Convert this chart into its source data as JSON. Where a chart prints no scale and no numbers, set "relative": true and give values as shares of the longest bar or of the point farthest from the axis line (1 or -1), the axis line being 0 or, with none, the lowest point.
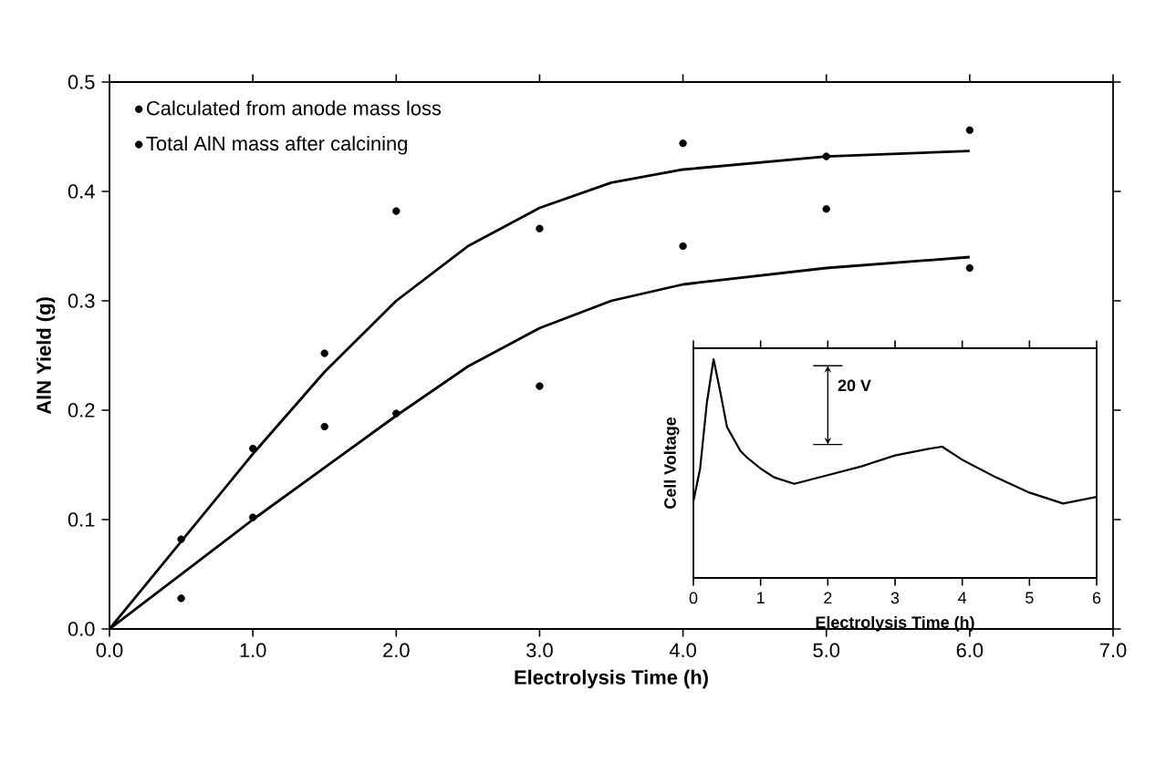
{
  "chart_data": [
    {
      "type": "scatter",
      "xlabel": "Electrolysis Time (h)",
      "ylabel": "AlN Yield (g)",
      "xlim": [
        0,
        7
      ],
      "ylim": [
        0,
        0.5
      ],
      "xticks": [
        {
          "value": 0,
          "label": "0.0"
        },
        {
          "value": 1,
          "label": "1.0"
        },
        {
          "value": 2,
          "label": "2.0"
        },
        {
          "value": 3,
          "label": "3.0"
        },
        {
          "value": 4,
          "label": "4.0"
        },
        {
          "value": 5,
          "label": "5.0"
        },
        {
          "value": 6,
          "label": "6.0"
        },
        {
          "value": 7,
          "label": "7.0"
        }
      ],
      "yticks": [
        {
          "value": 0,
          "label": "0.0"
        },
        0.1,
        0.2,
        0.3,
        0.4,
        0.5
      ],
      "legend": "top left",
      "series": [
        {
          "name": "Calculated from anode mass loss",
          "color": "#000000",
          "marker": "circle",
          "x": [
            0.5,
            1,
            1.5,
            2,
            3,
            4,
            5,
            6
          ],
          "values": [
            0.082,
            0.165,
            0.252,
            0.382,
            0.366,
            0.444,
            0.432,
            0.456
          ]
        },
        {
          "name": "Total AlN mass after calcining",
          "color": "#000000",
          "marker": "circle",
          "x": [
            0.5,
            1,
            1.5,
            2,
            3,
            4,
            5,
            6
          ],
          "values": [
            0.028,
            0.102,
            0.185,
            0.197,
            0.222,
            0.35,
            0.384,
            0.33
          ]
        },
        {
          "type": "line",
          "color": "#000000",
          "x": [
            0,
            0.5,
            1,
            1.5,
            2,
            2.5,
            3,
            3.5,
            4,
            5,
            6
          ],
          "values": [
            0,
            0.08,
            0.16,
            0.235,
            0.3,
            0.35,
            0.385,
            0.408,
            0.42,
            0.432,
            0.437
          ]
        },
        {
          "type": "line",
          "color": "#000000",
          "x": [
            0,
            0.5,
            1,
            2,
            2.5,
            3,
            3.5,
            4,
            5,
            6
          ],
          "values": [
            0,
            0.05,
            0.1,
            0.195,
            0.24,
            0.275,
            0.3,
            0.315,
            0.33,
            0.34
          ]
        }
      ]
    },
    {
      "type": "line",
      "relative": true,
      "xlabel": "Electrolysis Time (h)",
      "ylabel": "Cell Voltage",
      "xlim": [
        0,
        6
      ],
      "xticks": [
        0,
        1,
        2,
        3,
        4,
        5,
        6
      ],
      "tick_labels": "x",
      "annotations": [
        "20 V"
      ],
      "series": [
        {
          "color": "#000000",
          "x": [
            0,
            0.1,
            0.2,
            0.3,
            0.4,
            0.5,
            0.7,
            0.8,
            1,
            1.2,
            1.5,
            2,
            2.5,
            3,
            3.5,
            3.7,
            4,
            4.5,
            5,
            5.5,
            6
          ],
          "values": [
            0.35,
            0.5,
            0.8,
            1.0,
            0.85,
            0.69,
            0.58,
            0.55,
            0.5,
            0.46,
            0.43,
            0.47,
            0.51,
            0.56,
            0.59,
            0.6,
            0.54,
            0.46,
            0.39,
            0.34,
            0.37
          ]
        }
      ]
    }
  ]
}
